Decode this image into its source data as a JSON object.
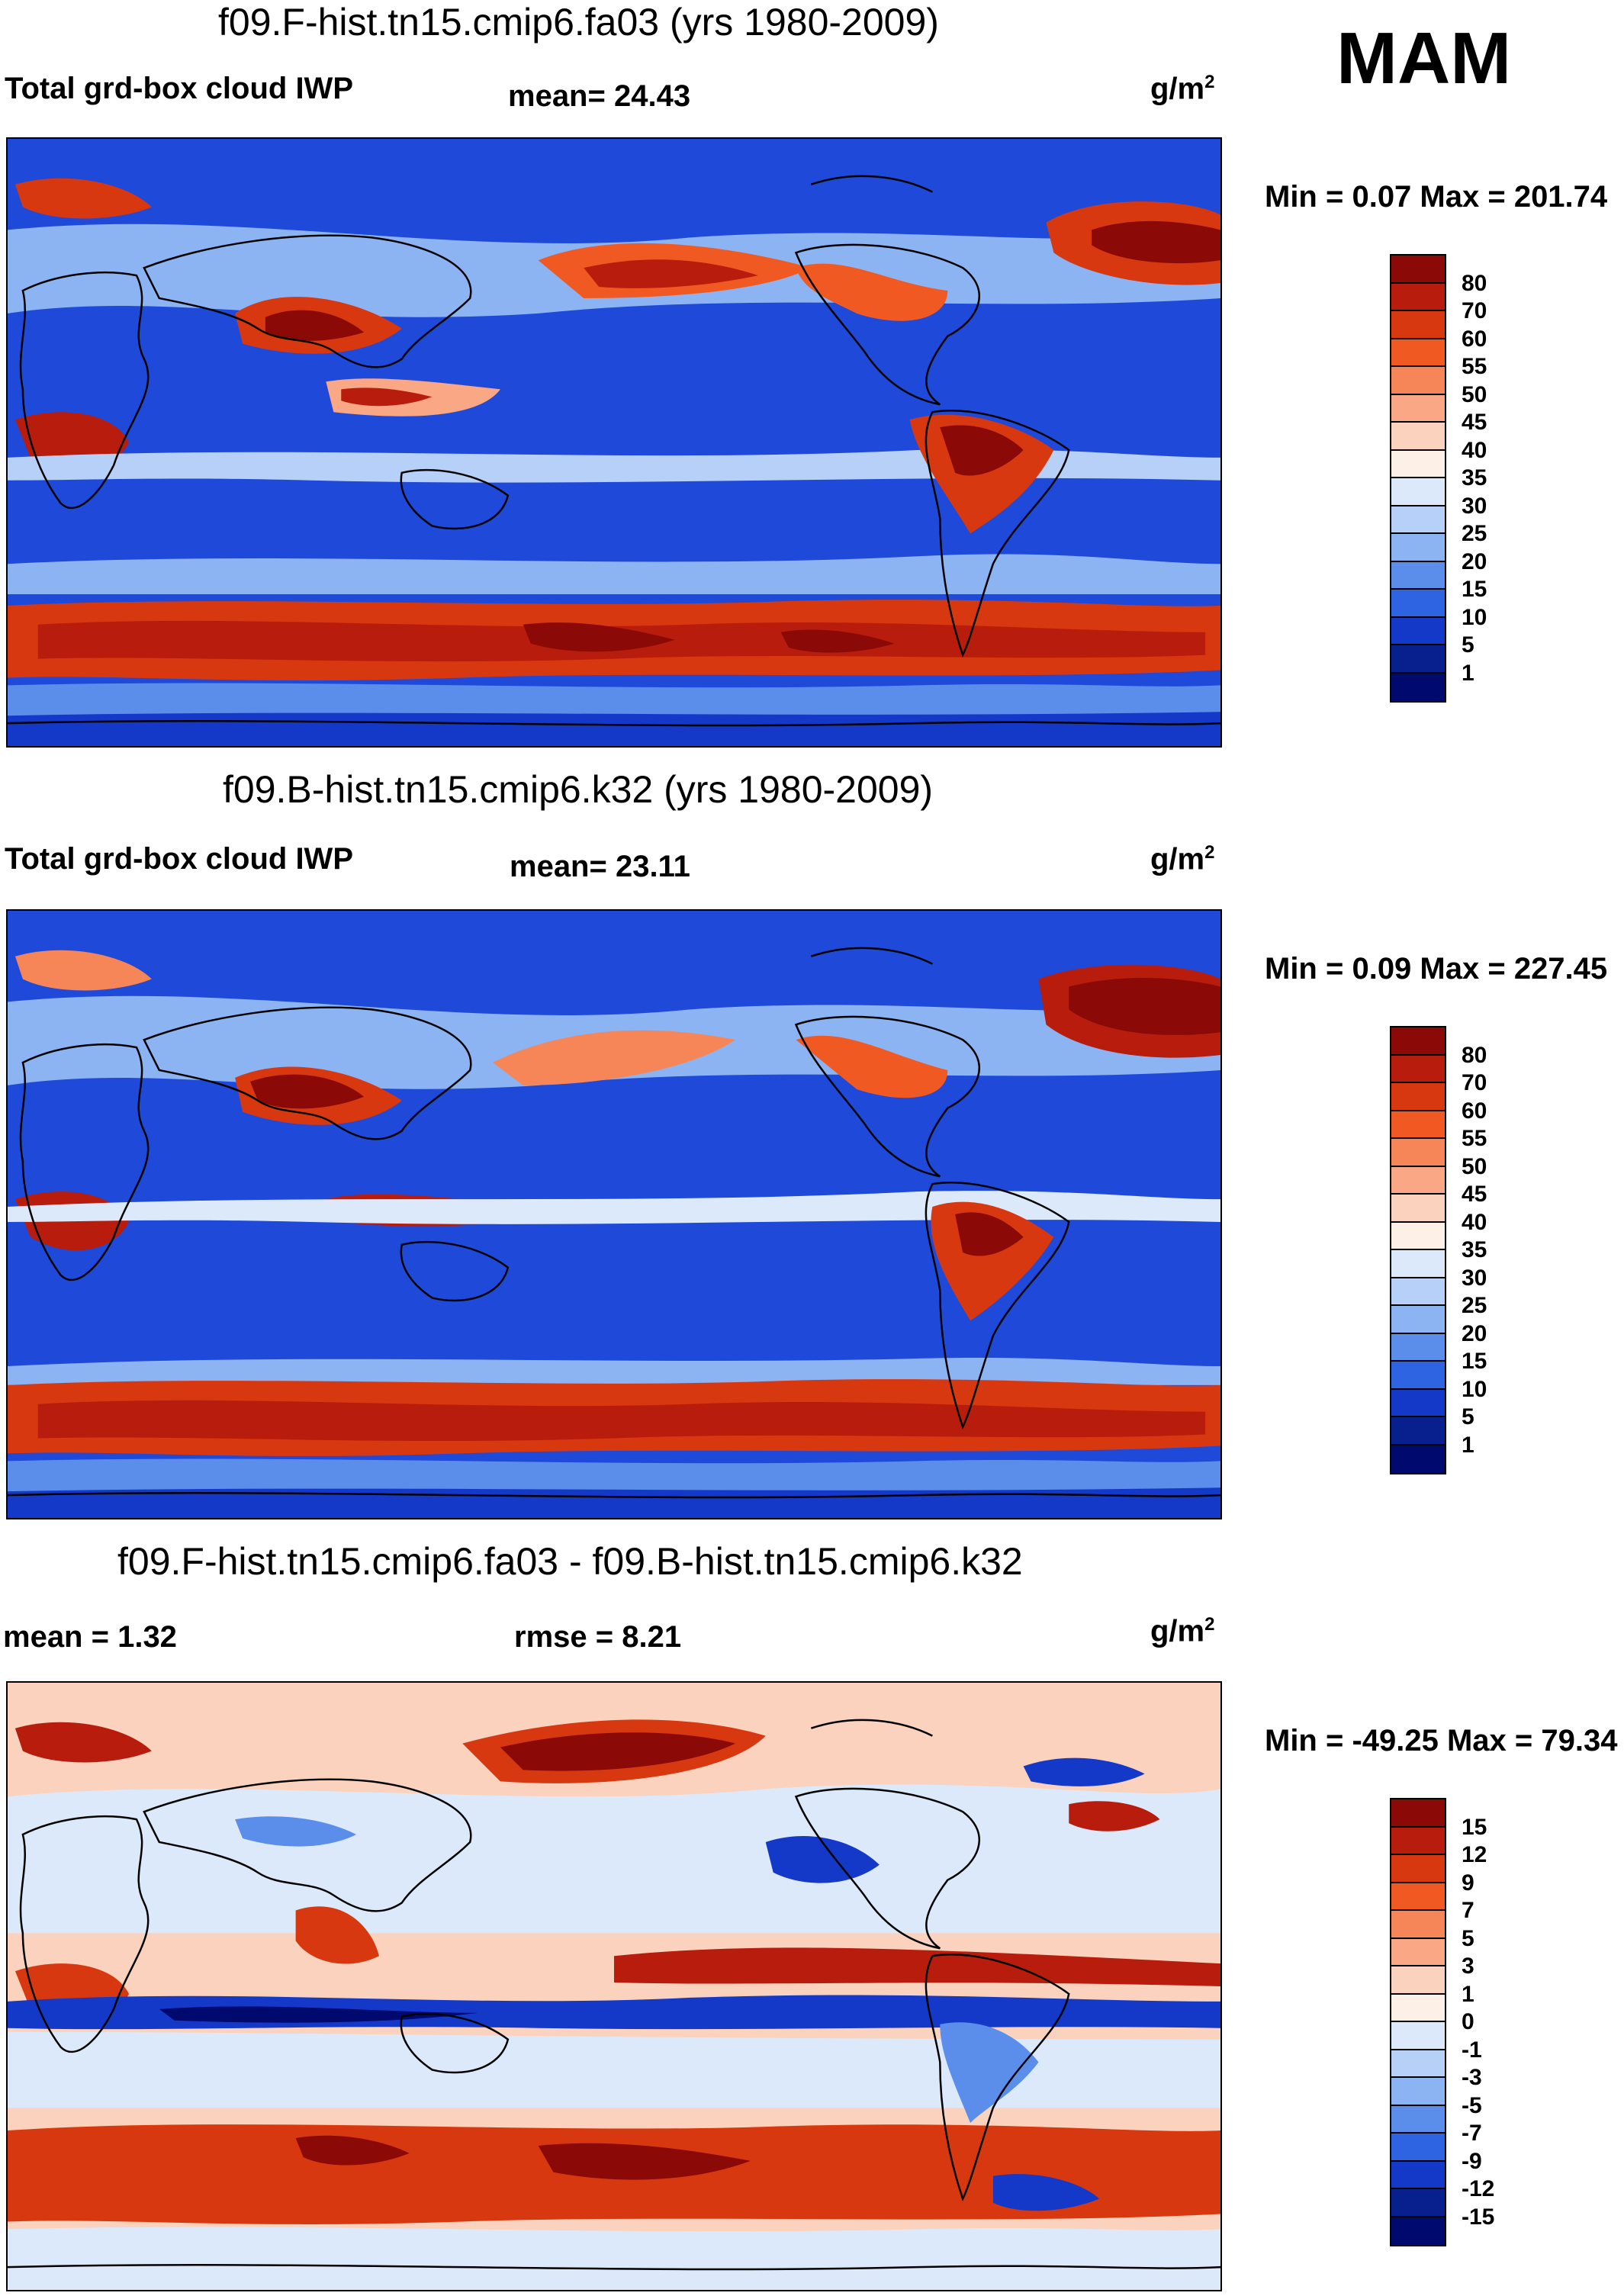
{
  "season": "MAM",
  "panels": [
    {
      "title": "f09.F-hist.tn15.cmip6.fa03 (yrs 1980-2009)",
      "left_label": "Total grd-box cloud IWP",
      "center_label": "mean=  24.43",
      "units": "g/m",
      "units_sup": "2",
      "minmax": "Min =   0.07 Max = 201.74",
      "colorbar_labels": [
        "80",
        "70",
        "60",
        "55",
        "50",
        "45",
        "40",
        "35",
        "30",
        "25",
        "20",
        "15",
        "10",
        "5",
        "1"
      ],
      "colorbar_colors": [
        "#8b0a08",
        "#b81c0c",
        "#d8380f",
        "#f05a22",
        "#f68658",
        "#f9a784",
        "#fbd2bd",
        "#fdf0e6",
        "#dce9fb",
        "#b7d0f7",
        "#8cb3f2",
        "#5b8eeb",
        "#2e63e2",
        "#1438c8",
        "#07208e",
        "#000a6e"
      ]
    },
    {
      "title": "f09.B-hist.tn15.cmip6.k32 (yrs 1980-2009)",
      "left_label": "Total grd-box cloud IWP",
      "center_label": "mean=  23.11",
      "units": "g/m",
      "units_sup": "2",
      "minmax": "Min =   0.09 Max = 227.45",
      "colorbar_labels": [
        "80",
        "70",
        "60",
        "55",
        "50",
        "45",
        "40",
        "35",
        "30",
        "25",
        "20",
        "15",
        "10",
        "5",
        "1"
      ],
      "colorbar_colors": [
        "#8b0a08",
        "#b81c0c",
        "#d8380f",
        "#f05a22",
        "#f68658",
        "#f9a784",
        "#fbd2bd",
        "#fdf0e6",
        "#dce9fb",
        "#b7d0f7",
        "#8cb3f2",
        "#5b8eeb",
        "#2e63e2",
        "#1438c8",
        "#07208e",
        "#000a6e"
      ]
    },
    {
      "title": "f09.F-hist.tn15.cmip6.fa03 - f09.B-hist.tn15.cmip6.k32",
      "left_label": "mean =   1.32",
      "center_label": "rmse =   8.21",
      "units": "g/m",
      "units_sup": "2",
      "minmax": "Min = -49.25 Max =  79.34",
      "colorbar_labels": [
        "15",
        "12",
        "9",
        "7",
        "5",
        "3",
        "1",
        "0",
        "-1",
        "-3",
        "-5",
        "-7",
        "-9",
        "-12",
        "-15"
      ],
      "colorbar_colors": [
        "#8b0a08",
        "#b81c0c",
        "#d8380f",
        "#f05a22",
        "#f68658",
        "#f9a784",
        "#fbd2bd",
        "#fdf0e6",
        "#dce9fb",
        "#b7d0f7",
        "#8cb3f2",
        "#5b8eeb",
        "#2e63e2",
        "#1438c8",
        "#07208e",
        "#000a6e"
      ]
    }
  ]
}
